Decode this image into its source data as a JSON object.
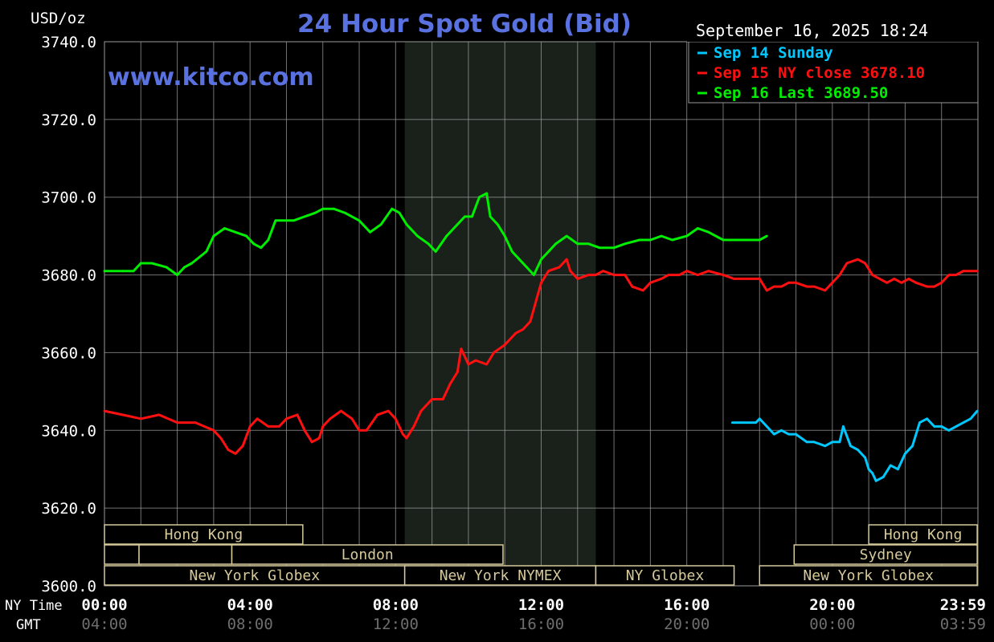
{
  "chart_data": {
    "type": "line",
    "title": "24 Hour Spot Gold (Bid)",
    "unit_label": "USD/oz",
    "watermark": "www.kitco.com",
    "timestamp": "September 16, 2025 18:24",
    "ylim": [
      3600,
      3740
    ],
    "y_ticks": [
      "3740.0",
      "3720.0",
      "3700.0",
      "3680.0",
      "3660.0",
      "3640.0",
      "3620.0",
      "3600.0"
    ],
    "y_tick_values": [
      3740,
      3720,
      3700,
      3680,
      3660,
      3640,
      3620,
      3600
    ],
    "xlim": [
      0,
      24
    ],
    "x_row_labels": {
      "ny": "NY Time",
      "gmt": "GMT"
    },
    "x_ticks_ny": [
      "00:00",
      "04:00",
      "08:00",
      "12:00",
      "16:00",
      "20:00",
      "23:59"
    ],
    "x_ticks_gmt": [
      "04:00",
      "08:00",
      "12:00",
      "16:00",
      "20:00",
      "00:00",
      "03:59"
    ],
    "x_tick_hours": [
      0,
      4,
      8,
      12,
      16,
      20,
      23.98
    ],
    "grid": true,
    "legend_position": "top-right",
    "colors": {
      "background": "#000000",
      "grid": "#9a9a9a",
      "title": "#5a72e0",
      "shade": "#1a211a",
      "session": "#d6c99a"
    },
    "nymex_shade_hours": [
      8.25,
      13.5
    ],
    "series": [
      {
        "name": "Sep 14 Sunday",
        "legend": "Sep 14 Sunday",
        "color": "#00c8ff",
        "x": [
          17.25,
          17.6,
          17.9,
          18.0,
          18.2,
          18.4,
          18.6,
          18.8,
          19.0,
          19.3,
          19.5,
          19.8,
          20.0,
          20.2,
          20.3,
          20.5,
          20.7,
          20.9,
          21.0,
          21.1,
          21.2,
          21.4,
          21.6,
          21.8,
          22.0,
          22.2,
          22.4,
          22.6,
          22.8,
          23.0,
          23.2,
          23.4,
          23.6,
          23.8,
          23.98
        ],
        "values": [
          3642,
          3642,
          3642,
          3643,
          3641,
          3639,
          3640,
          3639,
          3639,
          3637,
          3637,
          3636,
          3637,
          3637,
          3641,
          3636,
          3635,
          3633,
          3630,
          3629,
          3627,
          3628,
          3631,
          3630,
          3634,
          3636,
          3642,
          3643,
          3641,
          3641,
          3640,
          3641,
          3642,
          3643,
          3645
        ]
      },
      {
        "name": "Sep 15 NY close 3678.10",
        "legend": "Sep 15 NY close 3678.10",
        "color": "#ff1010",
        "x": [
          0,
          0.5,
          1.0,
          1.5,
          2.0,
          2.5,
          3.0,
          3.2,
          3.4,
          3.6,
          3.8,
          4.0,
          4.2,
          4.5,
          4.8,
          5.0,
          5.3,
          5.5,
          5.7,
          5.9,
          6.0,
          6.2,
          6.5,
          6.8,
          7.0,
          7.2,
          7.5,
          7.8,
          8.0,
          8.2,
          8.3,
          8.5,
          8.7,
          9.0,
          9.3,
          9.5,
          9.7,
          9.8,
          10.0,
          10.2,
          10.5,
          10.7,
          11.0,
          11.3,
          11.5,
          11.7,
          12.0,
          12.2,
          12.5,
          12.7,
          12.8,
          13.0,
          13.3,
          13.5,
          13.7,
          14.0,
          14.3,
          14.5,
          14.8,
          15.0,
          15.3,
          15.5,
          15.8,
          16.0,
          16.3,
          16.6,
          17.0,
          17.3,
          17.6,
          18.0,
          18.2,
          18.4,
          18.6,
          18.8,
          19.0,
          19.3,
          19.5,
          19.8,
          20.0,
          20.2,
          20.4,
          20.7,
          20.9,
          21.1,
          21.3,
          21.5,
          21.7,
          21.9,
          22.1,
          22.3,
          22.6,
          22.8,
          23.0,
          23.2,
          23.4,
          23.6,
          23.8,
          23.98
        ],
        "values": [
          3645,
          3644,
          3643,
          3644,
          3642,
          3642,
          3640,
          3638,
          3635,
          3634,
          3636,
          3641,
          3643,
          3641,
          3641,
          3643,
          3644,
          3640,
          3637,
          3638,
          3641,
          3643,
          3645,
          3643,
          3640,
          3640,
          3644,
          3645,
          3643,
          3639,
          3638,
          3641,
          3645,
          3648,
          3648,
          3652,
          3655,
          3661,
          3657,
          3658,
          3657,
          3660,
          3662,
          3665,
          3666,
          3668,
          3678,
          3681,
          3682,
          3684,
          3681,
          3679,
          3680,
          3680,
          3681,
          3680,
          3680,
          3677,
          3676,
          3678,
          3679,
          3680,
          3680,
          3681,
          3680,
          3681,
          3680,
          3679,
          3679,
          3679,
          3676,
          3677,
          3677,
          3678,
          3678,
          3677,
          3677,
          3676,
          3678,
          3680,
          3683,
          3684,
          3683,
          3680,
          3679,
          3678,
          3679,
          3678,
          3679,
          3678,
          3677,
          3677,
          3678,
          3680,
          3680,
          3681,
          3681,
          3681
        ]
      },
      {
        "name": "Sep 16 Last 3689.50",
        "legend": "Sep 16 Last 3689.50",
        "color": "#00ee00",
        "x": [
          0,
          0.5,
          0.8,
          1.0,
          1.3,
          1.7,
          2.0,
          2.2,
          2.4,
          2.8,
          3.0,
          3.3,
          3.6,
          3.9,
          4.1,
          4.3,
          4.5,
          4.7,
          4.9,
          5.2,
          5.5,
          5.8,
          6.0,
          6.3,
          6.6,
          7.0,
          7.3,
          7.6,
          7.9,
          8.1,
          8.3,
          8.6,
          8.9,
          9.1,
          9.4,
          9.7,
          9.9,
          10.1,
          10.3,
          10.5,
          10.6,
          10.8,
          11.0,
          11.2,
          11.4,
          11.6,
          11.8,
          12.0,
          12.2,
          12.4,
          12.7,
          13.0,
          13.3,
          13.6,
          14.0,
          14.3,
          14.7,
          15.0,
          15.3,
          15.6,
          16.0,
          16.3,
          16.6,
          17.0,
          17.3,
          17.6,
          17.8,
          18.0,
          18.2
        ],
        "values": [
          3681,
          3681,
          3681,
          3683,
          3683,
          3682,
          3680,
          3682,
          3683,
          3686,
          3690,
          3692,
          3691,
          3690,
          3688,
          3687,
          3689,
          3694,
          3694,
          3694,
          3695,
          3696,
          3697,
          3697,
          3696,
          3694,
          3691,
          3693,
          3697,
          3696,
          3693,
          3690,
          3688,
          3686,
          3690,
          3693,
          3695,
          3695,
          3700,
          3701,
          3695,
          3693,
          3690,
          3686,
          3684,
          3682,
          3680,
          3684,
          3686,
          3688,
          3690,
          3688,
          3688,
          3687,
          3687,
          3688,
          3689,
          3689,
          3690,
          3689,
          3690,
          3692,
          3691,
          3689,
          3689,
          3689,
          3689,
          3689,
          3690
        ]
      }
    ],
    "sessions": [
      {
        "label": "Hong Kong",
        "start": 0,
        "end": 5.45,
        "row": 0
      },
      {
        "label": "Hong Kong",
        "start": 21.0,
        "end": 23.98,
        "row": 0
      },
      {
        "label": "",
        "start": 0,
        "end": 0.95,
        "row": 1
      },
      {
        "label": "",
        "start": 0.95,
        "end": 3.5,
        "row": 1
      },
      {
        "label": "London",
        "start": 3.5,
        "end": 10.95,
        "row": 1
      },
      {
        "label": "Sydney",
        "start": 18.95,
        "end": 23.98,
        "row": 1
      },
      {
        "label": "New York Globex",
        "start": 0,
        "end": 8.25,
        "row": 2
      },
      {
        "label": "New York NYMEX",
        "start": 8.25,
        "end": 13.5,
        "row": 2
      },
      {
        "label": "NY Globex",
        "start": 13.5,
        "end": 17.3,
        "row": 2
      },
      {
        "label": "New York Globex",
        "start": 18.0,
        "end": 23.98,
        "row": 2
      }
    ]
  }
}
